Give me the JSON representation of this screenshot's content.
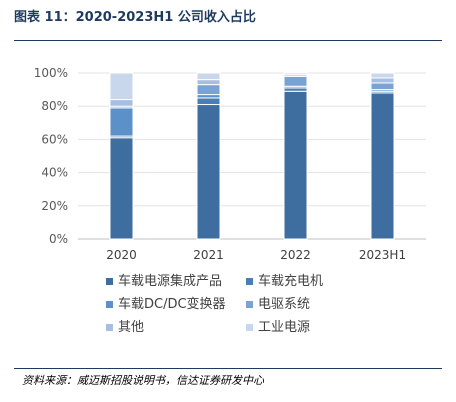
{
  "header": {
    "title": "图表 11：2020-2023H1 公司收入占比"
  },
  "footer": {
    "source": "资料来源：威迈斯招股说明书，信达证券研发中心"
  },
  "chart_data": {
    "type": "bar",
    "stacked": true,
    "title": "",
    "xlabel": "",
    "ylabel": "",
    "ylim": [
      0,
      100
    ],
    "yticks": [
      "0%",
      "20%",
      "40%",
      "60%",
      "80%",
      "100%"
    ],
    "categories": [
      "2020",
      "2021",
      "2022",
      "2023H1"
    ],
    "grid": true,
    "legend_position": "bottom",
    "series": [
      {
        "name": "车载电源集成产品",
        "color": "#3e6ea0",
        "values": [
          61,
          81,
          89,
          88
        ]
      },
      {
        "name": "车载充电机",
        "color": "#4a7fb5",
        "values": [
          1,
          4,
          2,
          1
        ]
      },
      {
        "name": "车载DC/DC变换器",
        "color": "#5b90c8",
        "values": [
          17,
          2,
          1,
          1
        ]
      },
      {
        "name": "电驱系统",
        "color": "#7aa3d4",
        "values": [
          1,
          6,
          6,
          4
        ]
      },
      {
        "name": "其他",
        "color": "#a6bfde",
        "values": [
          4,
          3,
          1,
          3
        ]
      },
      {
        "name": "工业电源",
        "color": "#c9d7ec",
        "values": [
          16,
          4,
          1,
          3
        ]
      }
    ]
  }
}
